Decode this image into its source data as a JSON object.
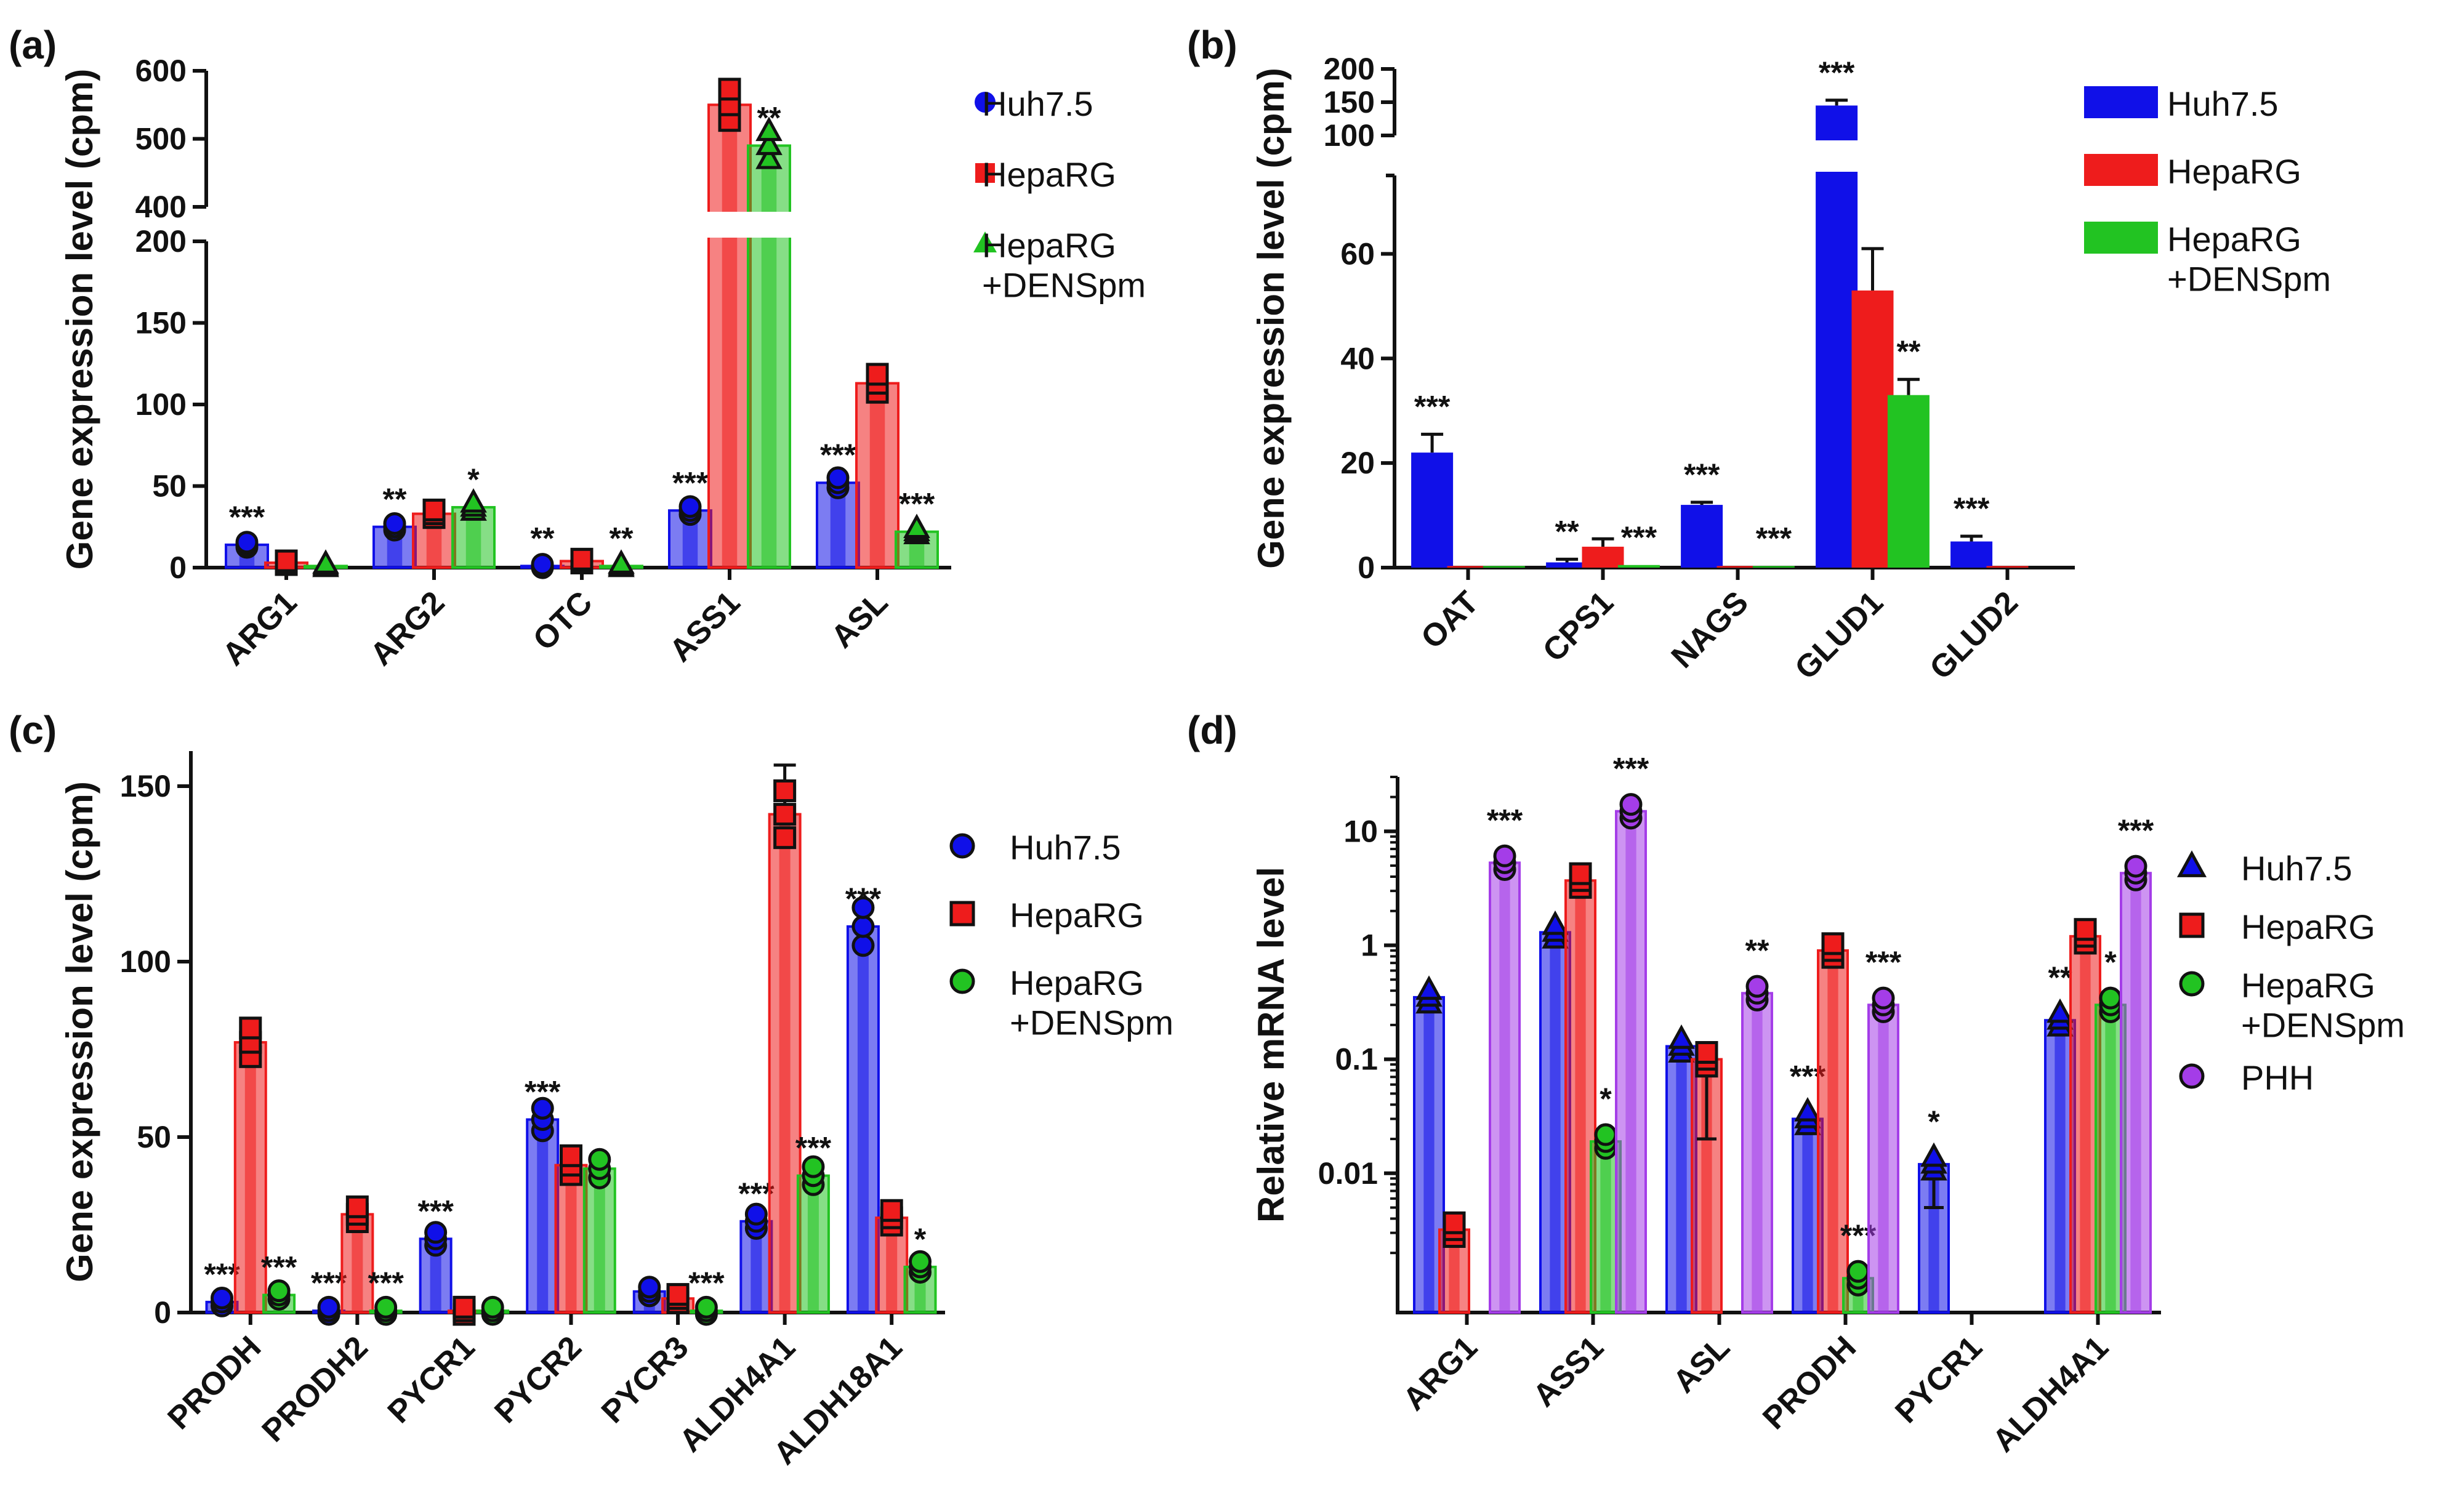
{
  "chart_data": [
    {
      "id": "a",
      "panel_label": "(a)",
      "type": "bar",
      "scale": "broken",
      "ylabel": "Gene expression level (cpm)",
      "upper_ticks": [
        "400",
        "500",
        "600"
      ],
      "lower_ticks": [
        "0",
        "50",
        "100",
        "150",
        "200"
      ],
      "categories": [
        "ARG1",
        "ARG2",
        "OTC",
        "ASS1",
        "ASL"
      ],
      "series": [
        {
          "name": "Huh7.5",
          "color": "#1010e8",
          "marker": "circle",
          "values": [
            14,
            25,
            1,
            35,
            52
          ],
          "sig": [
            "***",
            "**",
            "**",
            "***",
            "***"
          ]
        },
        {
          "name": "HepaRG",
          "color": "#ee1c1c",
          "marker": "square",
          "values": [
            3,
            33,
            4,
            550,
            113
          ],
          "sig": [
            "",
            "",
            "",
            "",
            ""
          ]
        },
        {
          "name": "HepaRG\n+DENSpm",
          "color": "#22c322",
          "marker": "triangle",
          "values": [
            1,
            37,
            1,
            490,
            22
          ],
          "sig": [
            "",
            "*",
            "**",
            "**",
            "***"
          ]
        }
      ]
    },
    {
      "id": "b",
      "panel_label": "(b)",
      "type": "bar",
      "scale": "broken",
      "ylabel": "Gene expression level (cpm)",
      "upper_ticks": [
        "100",
        "150",
        "200"
      ],
      "lower_ticks": [
        "0",
        "20",
        "40",
        "60"
      ],
      "categories": [
        "OAT",
        "CPS1",
        "NAGS",
        "GLUD1",
        "GLUD2"
      ],
      "series": [
        {
          "name": "Huh7.5",
          "color": "#1010e8",
          "marker": "rect",
          "values": [
            22,
            1,
            12,
            145,
            5
          ],
          "err": [
            3.5,
            0.6,
            0.5,
            8,
            1
          ],
          "sig": [
            "***",
            "**",
            "***",
            "***",
            "***"
          ]
        },
        {
          "name": "HepaRG",
          "color": "#ee1c1c",
          "marker": "rect",
          "values": [
            0.3,
            4,
            0.3,
            53,
            0.3
          ],
          "err": [
            0,
            1.5,
            0,
            8,
            0
          ],
          "sig": [
            "",
            "",
            "",
            "",
            ""
          ]
        },
        {
          "name": "HepaRG\n+DENSpm",
          "color": "#22c322",
          "marker": "rect",
          "values": [
            0.3,
            0.5,
            0.3,
            33,
            0
          ],
          "err": [
            0,
            0,
            0,
            3,
            0
          ],
          "sig": [
            "",
            "***",
            "***",
            "**",
            ""
          ]
        }
      ]
    },
    {
      "id": "c",
      "panel_label": "(c)",
      "type": "bar",
      "scale": "linear",
      "ylabel": "Gene expression level (cpm)",
      "ylim": [
        0,
        160
      ],
      "ticks": [
        "0",
        "50",
        "100",
        "150"
      ],
      "categories": [
        "PRODH",
        "PRODH2",
        "PYCR1",
        "PYCR2",
        "PYCR3",
        "ALDH4A1",
        "ALDH18A1"
      ],
      "series": [
        {
          "name": "Huh7.5",
          "color": "#1010e8",
          "marker": "circle",
          "values": [
            3,
            0.5,
            21,
            55,
            6,
            26,
            110
          ],
          "err": [
            0,
            0,
            0,
            0,
            0,
            0,
            0
          ],
          "sig": [
            "***",
            "***",
            "***",
            "***",
            "",
            "***",
            "***"
          ]
        },
        {
          "name": "HepaRG",
          "color": "#ee1c1c",
          "marker": "square",
          "values": [
            77,
            28,
            0.5,
            42,
            4,
            142,
            27
          ],
          "err": [
            0,
            0,
            0,
            0,
            0,
            14,
            0
          ],
          "sig": [
            "",
            "",
            "",
            "",
            "",
            "",
            ""
          ]
        },
        {
          "name": "HepaRG\n+DENSpm",
          "color": "#22c322",
          "marker": "circle",
          "values": [
            5,
            0.5,
            0.5,
            41,
            0.5,
            39,
            13
          ],
          "err": [
            0,
            0,
            0,
            0,
            0,
            0,
            0
          ],
          "sig": [
            "***",
            "***",
            "",
            "",
            "***",
            "***",
            "*"
          ]
        }
      ]
    },
    {
      "id": "d",
      "panel_label": "(d)",
      "type": "bar",
      "scale": "log",
      "ylabel": "Relative mRNA level",
      "ylim": [
        0.0006,
        30
      ],
      "ticks": [
        "0.01",
        "0.1",
        "1",
        "10"
      ],
      "categories": [
        "ARG1",
        "ASS1",
        "ASL",
        "PRODH",
        "PYCR1",
        "ALDH4A1"
      ],
      "series": [
        {
          "name": "Huh7.5",
          "color": "#1010e8",
          "marker": "triangle",
          "values": [
            0.35,
            1.3,
            0.13,
            0.03,
            0.012,
            0.22
          ],
          "err_lo": [
            0,
            0,
            0,
            0,
            0.007,
            0
          ],
          "sig": [
            "",
            "",
            "",
            "***",
            "*",
            "**"
          ]
        },
        {
          "name": "HepaRG",
          "color": "#ee1c1c",
          "marker": "square",
          "values": [
            0.0032,
            3.7,
            0.1,
            0.9,
            0,
            1.2
          ],
          "err_lo": [
            0,
            0,
            0.08,
            0,
            0,
            0
          ],
          "sig": [
            "",
            "",
            "",
            "",
            "",
            ""
          ]
        },
        {
          "name": "HepaRG\n+DENSpm",
          "color": "#22c322",
          "marker": "circle",
          "values": [
            0,
            0.019,
            0,
            0.0012,
            0,
            0.3
          ],
          "err_lo": [
            0,
            0,
            0,
            0,
            0,
            0
          ],
          "sig": [
            "",
            "*",
            "",
            "***",
            "",
            "*"
          ]
        },
        {
          "name": "PHH",
          "color": "#a43de8",
          "marker": "circle",
          "values": [
            5.3,
            15,
            0.38,
            0.3,
            0,
            4.3
          ],
          "err_lo": [
            0,
            0,
            0,
            0,
            0,
            0
          ],
          "sig": [
            "***",
            "***",
            "**",
            "***",
            "",
            "***"
          ]
        }
      ]
    }
  ]
}
